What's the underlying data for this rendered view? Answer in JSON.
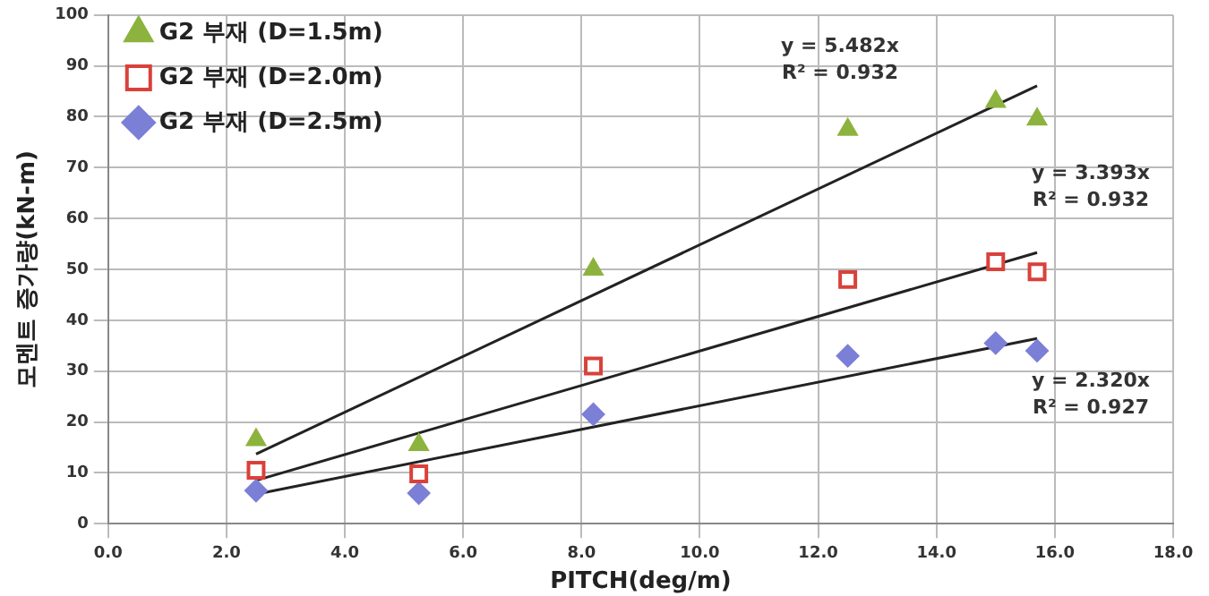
{
  "chart_data": {
    "type": "scatter",
    "xlabel": "PITCH(deg/m)",
    "ylabel": "모멘트 증가량(kN-m)",
    "xlim": [
      0,
      18
    ],
    "ylim": [
      0,
      100
    ],
    "xticks": [
      {
        "value": 0,
        "label": "0.0"
      },
      {
        "value": 2,
        "label": "2.0"
      },
      {
        "value": 4,
        "label": "4.0"
      },
      {
        "value": 6,
        "label": "6.0"
      },
      {
        "value": 8,
        "label": "8.0"
      },
      {
        "value": 10,
        "label": "10.0"
      },
      {
        "value": 12,
        "label": "12.0"
      },
      {
        "value": 14,
        "label": "14.0"
      },
      {
        "value": 16,
        "label": "16.0"
      },
      {
        "value": 18,
        "label": "18.0"
      }
    ],
    "yticks": [
      0,
      10,
      20,
      30,
      40,
      50,
      60,
      70,
      80,
      90,
      100
    ],
    "grid": true,
    "legend": "top left",
    "x": [
      2.5,
      5.25,
      8.2,
      12.5,
      15.0,
      15.7
    ],
    "series": [
      {
        "name": "G2 부재 (D=1.5m)",
        "color": "#8db33f",
        "marker": "triangle",
        "values": [
          16.5,
          15.5,
          50,
          77.5,
          83,
          79.5
        ]
      },
      {
        "name": "G2 부재 (D=2.0m)",
        "color": "#d9413b",
        "marker": "square",
        "values": [
          10.5,
          9.8,
          31,
          48,
          51.5,
          49.5
        ]
      },
      {
        "name": "G2 부재 (D=2.5m)",
        "color": "#7b7fd6",
        "marker": "diamond",
        "values": [
          6.5,
          6,
          21.5,
          33,
          35.5,
          34
        ]
      },
      {
        "type": "line",
        "color": "#222222",
        "marker": "none",
        "values": [
          13.7,
          null,
          null,
          null,
          null,
          86.1
        ]
      },
      {
        "type": "line",
        "color": "#222222",
        "marker": "none",
        "values": [
          8.5,
          null,
          null,
          null,
          null,
          53.3
        ]
      },
      {
        "type": "line",
        "color": "#222222",
        "marker": "none",
        "values": [
          5.8,
          null,
          null,
          null,
          null,
          36.4
        ]
      }
    ],
    "annotations": [
      "y = 5.482x",
      "R² = 0.932",
      "y = 3.393x",
      "R² = 0.932",
      "y = 2.320x",
      "R² = 0.927"
    ]
  }
}
